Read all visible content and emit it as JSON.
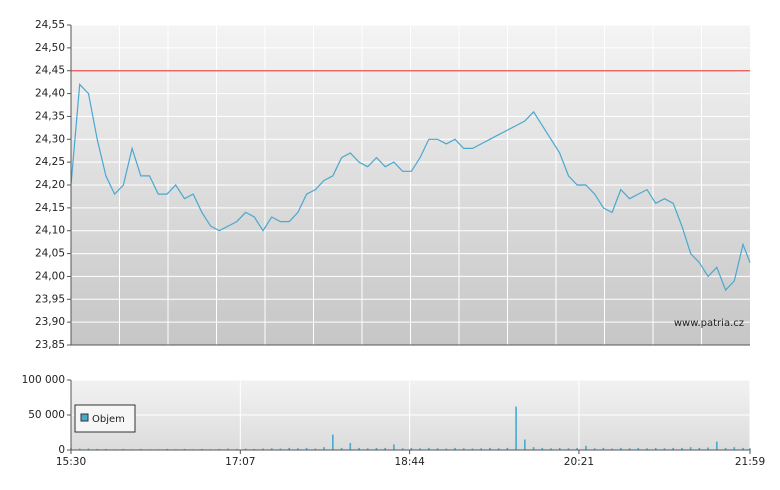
{
  "chart_data": [
    {
      "type": "line",
      "annotation": "www.patria.cz",
      "x": [
        "15:30",
        "15:35",
        "15:40",
        "15:45",
        "15:50",
        "15:55",
        "16:00",
        "16:05",
        "16:10",
        "16:15",
        "16:20",
        "16:25",
        "16:30",
        "16:35",
        "16:40",
        "16:45",
        "16:50",
        "16:55",
        "17:00",
        "17:05",
        "17:10",
        "17:15",
        "17:20",
        "17:25",
        "17:30",
        "17:35",
        "17:40",
        "17:45",
        "17:50",
        "17:55",
        "18:00",
        "18:05",
        "18:10",
        "18:15",
        "18:20",
        "18:25",
        "18:30",
        "18:35",
        "18:40",
        "18:45",
        "18:50",
        "18:55",
        "19:00",
        "19:05",
        "19:10",
        "19:15",
        "19:20",
        "19:25",
        "19:30",
        "19:35",
        "19:40",
        "19:45",
        "19:50",
        "19:55",
        "20:00",
        "20:05",
        "20:10",
        "20:15",
        "20:20",
        "20:25",
        "20:30",
        "20:35",
        "20:40",
        "20:45",
        "20:50",
        "20:55",
        "21:00",
        "21:05",
        "21:10",
        "21:15",
        "21:20",
        "21:25",
        "21:30",
        "21:35",
        "21:40",
        "21:45",
        "21:50",
        "21:55",
        "21:59"
      ],
      "values": [
        24.2,
        24.42,
        24.4,
        24.3,
        24.22,
        24.18,
        24.2,
        24.28,
        24.22,
        24.22,
        24.18,
        24.18,
        24.2,
        24.17,
        24.18,
        24.14,
        24.11,
        24.1,
        24.11,
        24.12,
        24.14,
        24.13,
        24.1,
        24.13,
        24.12,
        24.12,
        24.14,
        24.18,
        24.19,
        24.21,
        24.22,
        24.26,
        24.27,
        24.25,
        24.24,
        24.26,
        24.24,
        24.25,
        24.23,
        24.23,
        24.26,
        24.3,
        24.3,
        24.29,
        24.3,
        24.28,
        24.28,
        24.29,
        24.3,
        24.31,
        24.32,
        24.33,
        24.34,
        24.36,
        24.33,
        24.3,
        24.27,
        24.22,
        24.2,
        24.2,
        24.18,
        24.15,
        24.14,
        24.19,
        24.17,
        24.18,
        24.19,
        24.16,
        24.17,
        24.16,
        24.11,
        24.05,
        24.03,
        24.0,
        24.02,
        23.97,
        23.99,
        24.07,
        24.03
      ],
      "color": "#4aa8d0",
      "reference_line": 24.45,
      "reference_color": "#e85050",
      "xlim": [
        "15:30",
        "21:59"
      ],
      "ylim": [
        23.85,
        24.55
      ],
      "yticks": [
        {
          "value": 23.85,
          "label": "23,85"
        },
        {
          "value": 23.9,
          "label": "23,90"
        },
        {
          "value": 23.95,
          "label": "23,95"
        },
        {
          "value": 24.0,
          "label": "24,00"
        },
        {
          "value": 24.05,
          "label": "24,05"
        },
        {
          "value": 24.1,
          "label": "24,10"
        },
        {
          "value": 24.15,
          "label": "24,15"
        },
        {
          "value": 24.2,
          "label": "24,20"
        },
        {
          "value": 24.25,
          "label": "24,25"
        },
        {
          "value": 24.3,
          "label": "24,30"
        },
        {
          "value": 24.35,
          "label": "24,35"
        },
        {
          "value": 24.4,
          "label": "24,40"
        },
        {
          "value": 24.45,
          "label": "24,45"
        },
        {
          "value": 24.5,
          "label": "24,50"
        },
        {
          "value": 24.55,
          "label": "24,55"
        }
      ],
      "grid": true
    },
    {
      "type": "bar",
      "x": [
        "15:30",
        "15:35",
        "15:40",
        "15:45",
        "15:50",
        "15:55",
        "16:00",
        "16:05",
        "16:10",
        "16:15",
        "16:20",
        "16:25",
        "16:30",
        "16:35",
        "16:40",
        "16:45",
        "16:50",
        "16:55",
        "17:00",
        "17:05",
        "17:10",
        "17:15",
        "17:20",
        "17:25",
        "17:30",
        "17:35",
        "17:40",
        "17:45",
        "17:50",
        "17:55",
        "18:00",
        "18:05",
        "18:10",
        "18:15",
        "18:20",
        "18:25",
        "18:30",
        "18:35",
        "18:40",
        "18:45",
        "18:50",
        "18:55",
        "19:00",
        "19:05",
        "19:10",
        "19:15",
        "19:20",
        "19:25",
        "19:30",
        "19:35",
        "19:40",
        "19:45",
        "19:50",
        "19:55",
        "20:00",
        "20:05",
        "20:10",
        "20:15",
        "20:20",
        "20:25",
        "20:30",
        "20:35",
        "20:40",
        "20:45",
        "20:50",
        "20:55",
        "21:00",
        "21:05",
        "21:10",
        "21:15",
        "21:20",
        "21:25",
        "21:30",
        "21:35",
        "21:40",
        "21:45",
        "21:50",
        "21:55",
        "21:59"
      ],
      "series": [
        {
          "name": "Objem",
          "color": "#4aa8d0",
          "values": [
            3000,
            2000,
            2000,
            1500,
            1500,
            1000,
            1500,
            1000,
            1500,
            1000,
            1000,
            1500,
            1000,
            1500,
            1000,
            1500,
            1000,
            1500,
            2000,
            1500,
            2000,
            1500,
            2000,
            2500,
            2000,
            3000,
            2500,
            3000,
            2000,
            4000,
            22000,
            3000,
            10000,
            3000,
            2500,
            3000,
            3000,
            8000,
            2500,
            3000,
            2500,
            3000,
            2500,
            2000,
            3000,
            2500,
            2000,
            2500,
            3000,
            2500,
            3000,
            62000,
            15000,
            4000,
            3000,
            2500,
            3000,
            2500,
            3000,
            6000,
            2500,
            3000,
            2000,
            3000,
            2500,
            3000,
            2500,
            3000,
            2500,
            3000,
            3000,
            4000,
            3000,
            3500,
            12000,
            3000,
            4000,
            3000,
            2500
          ]
        }
      ],
      "xlim": [
        "15:30",
        "21:59"
      ],
      "xticks": [
        "15:30",
        "17:07",
        "18:44",
        "20:21",
        "21:59"
      ],
      "ylim": [
        0,
        100000
      ],
      "yticks": [
        0,
        {
          "value": 50000,
          "label": "50 000"
        },
        {
          "value": 100000,
          "label": "100 000"
        }
      ],
      "grid": true
    }
  ]
}
